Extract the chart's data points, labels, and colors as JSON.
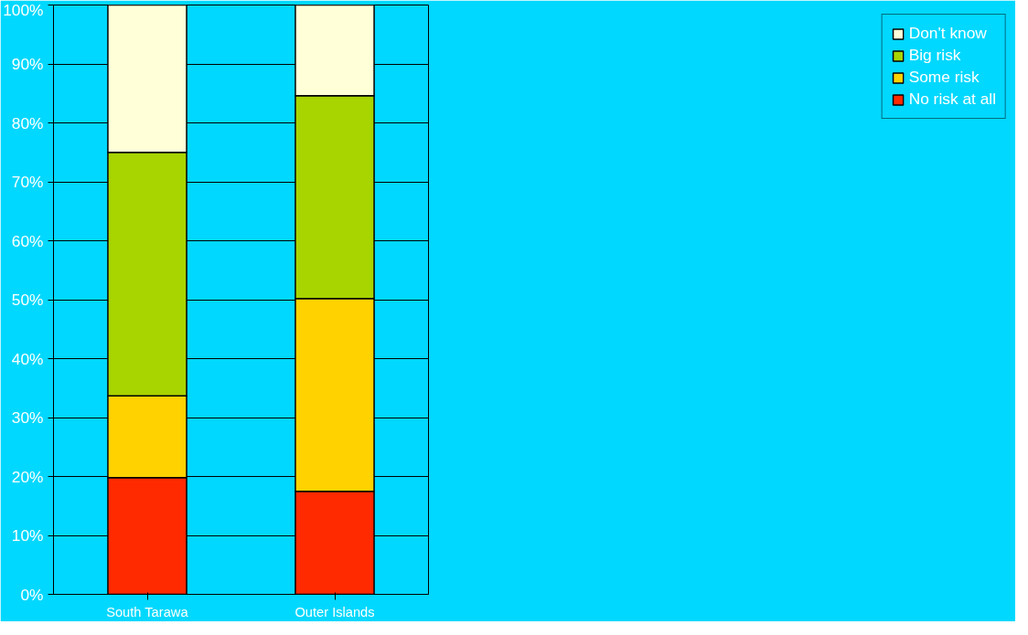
{
  "chart_data": {
    "type": "bar",
    "stacked": true,
    "categories": [
      "South Tarawa",
      "Outer Islands"
    ],
    "series": [
      {
        "name": "No risk at all",
        "color": "#ff2a00",
        "values": [
          19.8,
          17.5
        ]
      },
      {
        "name": "Some risk",
        "color": "#ffd200",
        "values": [
          13.9,
          32.7
        ]
      },
      {
        "name": "Big risk",
        "color": "#a8d400",
        "values": [
          41.3,
          34.4
        ]
      },
      {
        "name": "Don't know",
        "color": "#ffffd8",
        "values": [
          25.0,
          15.4
        ]
      }
    ],
    "ylim": [
      0,
      100
    ],
    "yticks": [
      {
        "value": 0,
        "label": "0%"
      },
      {
        "value": 10,
        "label": "10%"
      },
      {
        "value": 20,
        "label": "20%"
      },
      {
        "value": 30,
        "label": "30%"
      },
      {
        "value": 40,
        "label": "40%"
      },
      {
        "value": 50,
        "label": "50%"
      },
      {
        "value": 60,
        "label": "60%"
      },
      {
        "value": 70,
        "label": "70%"
      },
      {
        "value": 80,
        "label": "80%"
      },
      {
        "value": 90,
        "label": "90%"
      },
      {
        "value": 100,
        "label": "100%"
      }
    ],
    "grid": "y",
    "legend": "right"
  }
}
